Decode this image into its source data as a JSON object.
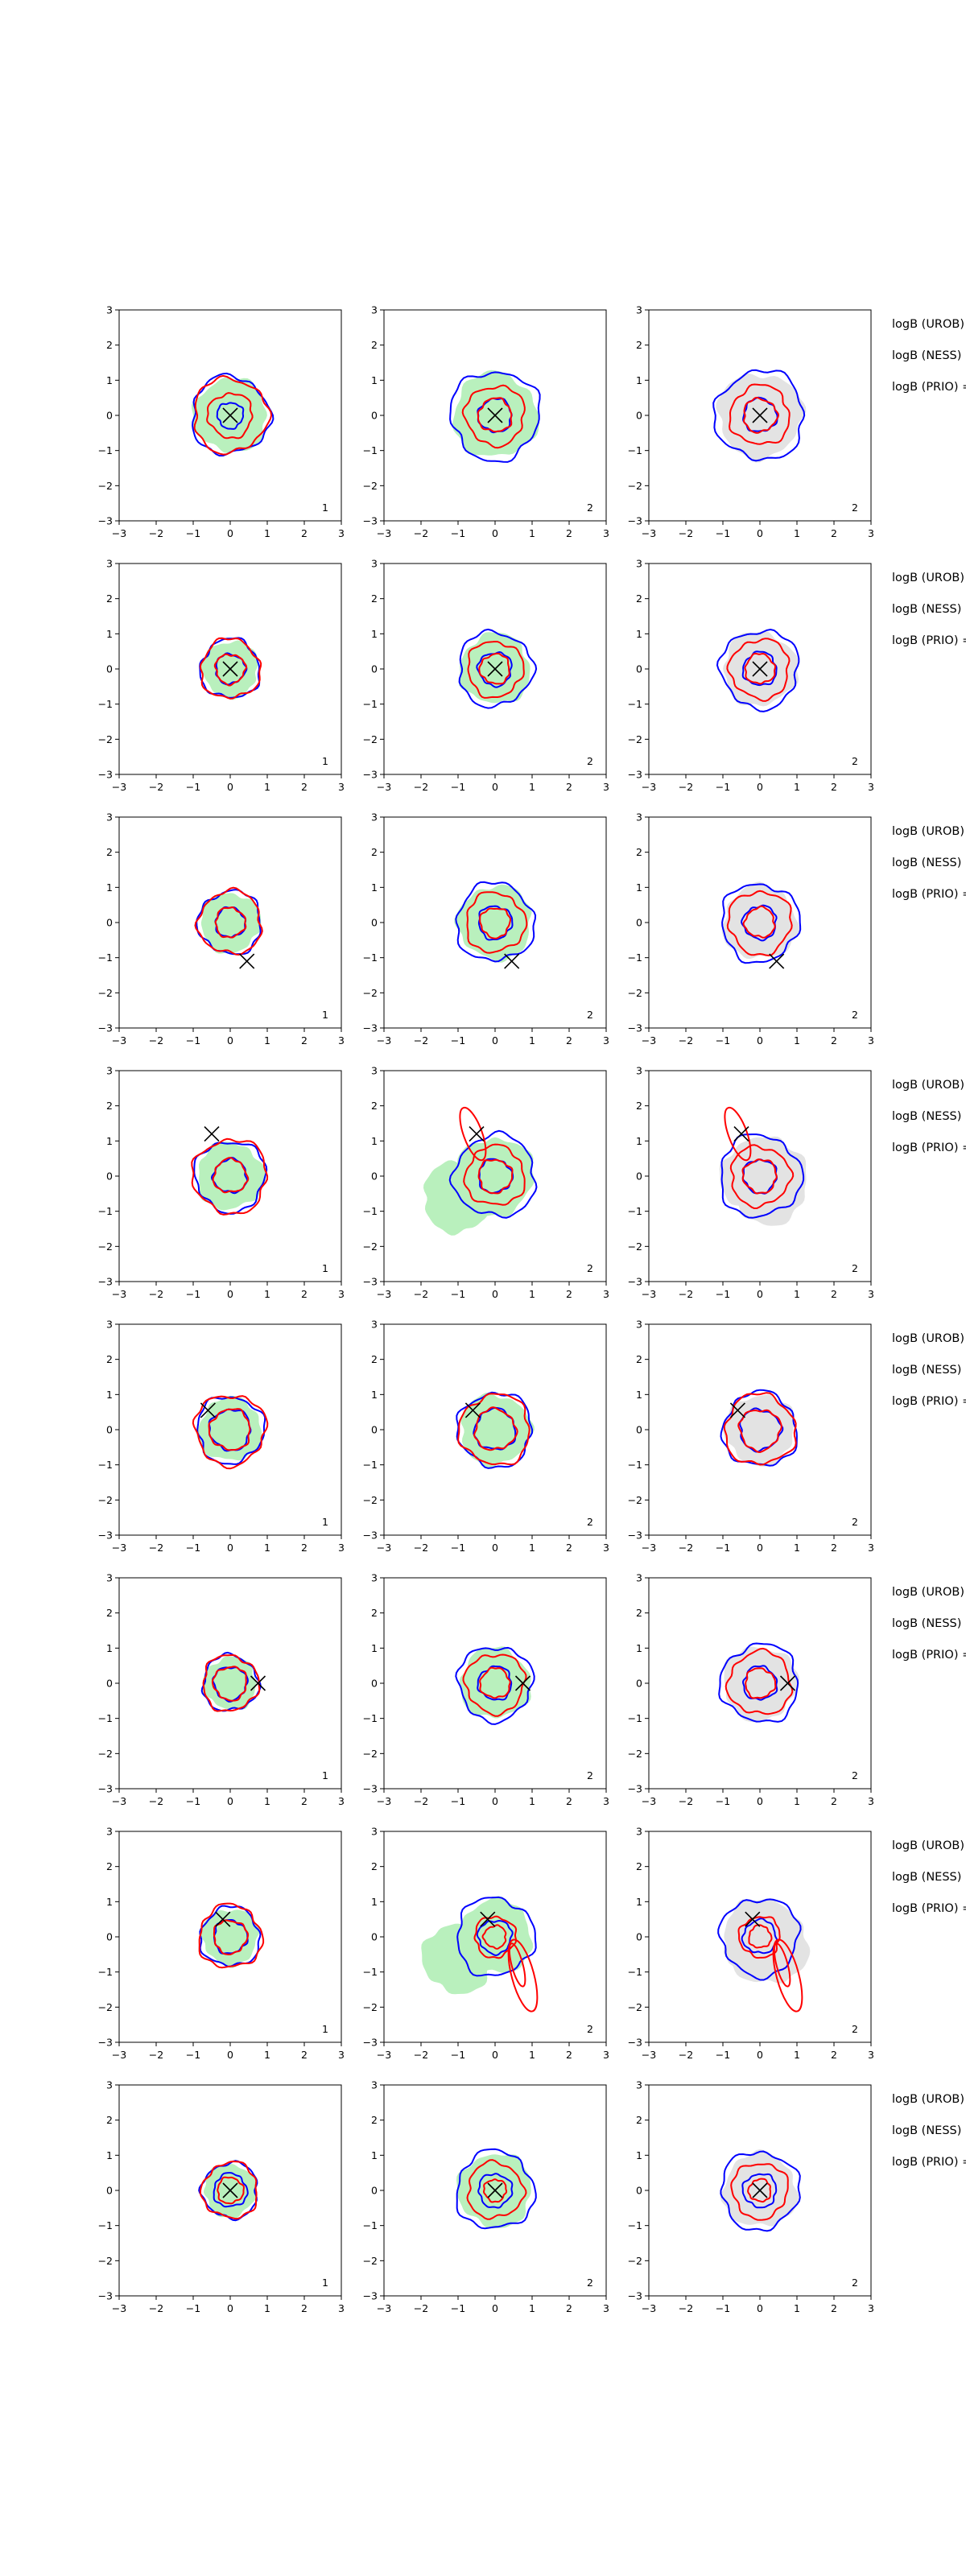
{
  "colors": {
    "blue": "#0000ff",
    "red": "#ff0000",
    "green_fill": "#b9f0bd",
    "gray_fill": "#e3e3e3",
    "marker": "#000000"
  },
  "chart_data": {
    "type": "contour",
    "grid": false,
    "xlim": [
      -3,
      3
    ],
    "ylim": [
      -3,
      3
    ],
    "xticks": [
      "−3",
      "−2",
      "−1",
      "0",
      "1",
      "2",
      "3"
    ],
    "yticks": [
      "−3",
      "−2",
      "−1",
      "0",
      "1",
      "2",
      "3"
    ],
    "columns": [
      {
        "fill": "green_fill",
        "label": "1"
      },
      {
        "fill": "green_fill",
        "label": "2"
      },
      {
        "fill": "gray_fill",
        "label": "2"
      }
    ],
    "row_labels": [
      "logB (UROB) =",
      "logB (NESS) =",
      "logB (PRIO) ="
    ],
    "rows": [
      {
        "marker": [
          0,
          0
        ],
        "outer": [
          1.05,
          1.2,
          1.2
        ],
        "inner": [
          0.35,
          0.45,
          0.45
        ],
        "red_outer": [
          1.0,
          0.8,
          0.8
        ],
        "red_inner": [
          0.6,
          0.45,
          0.45
        ],
        "red_tail": false,
        "green_blob": false
      },
      {
        "marker": [
          0,
          0
        ],
        "outer": [
          0.8,
          1.0,
          1.05
        ],
        "inner": [
          0.4,
          0.45,
          0.45
        ],
        "red_outer": [
          0.8,
          0.75,
          0.8
        ],
        "red_inner": [
          0.4,
          0.4,
          0.4
        ],
        "red_tail": false,
        "green_blob": false
      },
      {
        "marker": [
          0.45,
          -1.1
        ],
        "outer": [
          0.85,
          1.05,
          1.05
        ],
        "inner": [
          0.4,
          0.45,
          0.45
        ],
        "red_outer": [
          0.85,
          0.8,
          0.85
        ],
        "red_inner": [
          0.4,
          0.4,
          0.4
        ],
        "red_tail": false,
        "green_blob": false
      },
      {
        "marker": [
          -0.5,
          1.2
        ],
        "outer": [
          0.95,
          1.1,
          1.1
        ],
        "inner": [
          0.45,
          0.45,
          0.45
        ],
        "red_outer": [
          1.0,
          0.8,
          0.8
        ],
        "red_inner": [
          0.45,
          0.45,
          0.45
        ],
        "red_tail": true,
        "green_blob": true
      },
      {
        "marker": [
          -0.6,
          0.55
        ],
        "outer": [
          0.9,
          1.0,
          1.0
        ],
        "inner": [
          0.55,
          0.55,
          0.55
        ],
        "red_outer": [
          0.95,
          0.95,
          0.95
        ],
        "red_inner": [
          0.55,
          0.55,
          0.55
        ],
        "red_tail": false,
        "green_blob": false
      },
      {
        "marker": [
          0.75,
          0
        ],
        "outer": [
          0.75,
          1.0,
          1.05
        ],
        "inner": [
          0.45,
          0.45,
          0.45
        ],
        "red_outer": [
          0.75,
          0.8,
          0.85
        ],
        "red_inner": [
          0.45,
          0.4,
          0.4
        ],
        "red_tail": false,
        "green_blob": false
      },
      {
        "marker": [
          -0.2,
          0.5
        ],
        "outer": [
          0.8,
          1.05,
          1.05
        ],
        "inner": [
          0.45,
          0.45,
          0.45
        ],
        "red_outer": [
          0.85,
          0.55,
          0.55
        ],
        "red_inner": [
          0.45,
          0.3,
          0.3
        ],
        "red_tail": true,
        "green_blob": true
      },
      {
        "marker": [
          0,
          0
        ],
        "outer": [
          0.75,
          1.05,
          1.05
        ],
        "inner": [
          0.45,
          0.45,
          0.45
        ],
        "red_outer": [
          0.75,
          0.75,
          0.75
        ],
        "red_inner": [
          0.35,
          0.3,
          0.3
        ],
        "red_tail": false,
        "green_blob": false
      }
    ]
  }
}
